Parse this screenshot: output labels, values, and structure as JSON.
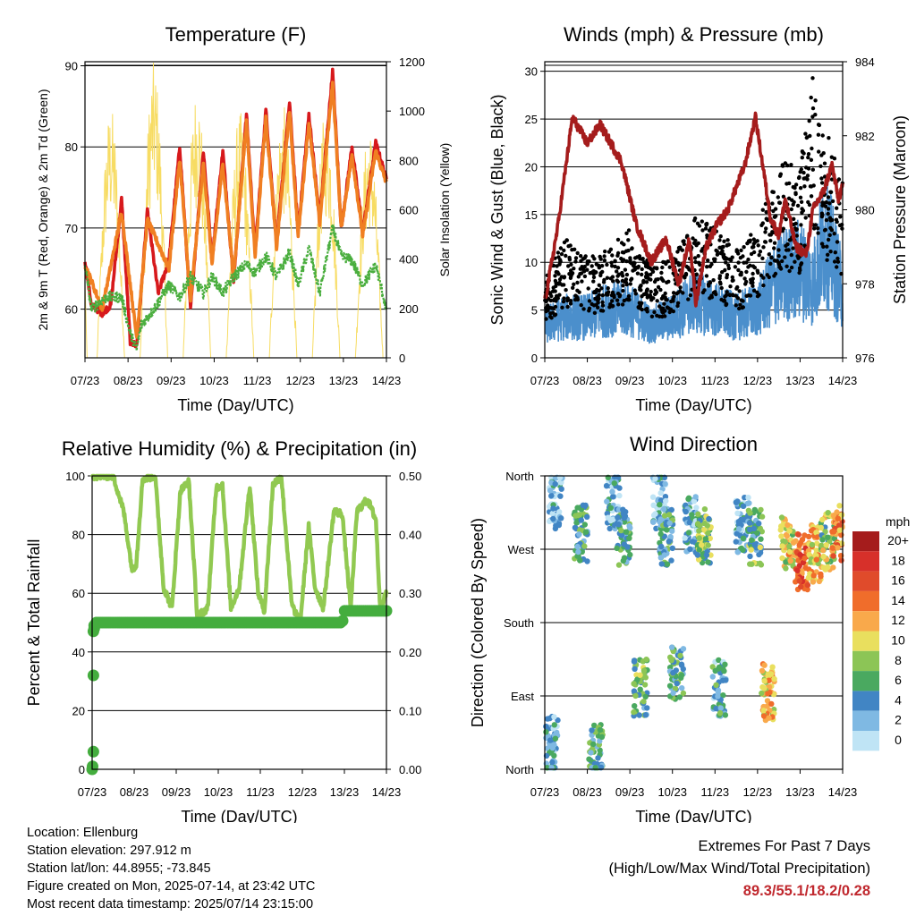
{
  "colors": {
    "temp_2m": "#d7191c",
    "temp_9m": "#f07f22",
    "dewpoint": "#4aae3e",
    "solar": "#f7dc63",
    "gust": "#000000",
    "sonic_wind": "#4b8fcc",
    "pressure": "#a51c1c",
    "rh": "#91c951",
    "precip": "#44ad3e",
    "extremes_value": "#c0282e",
    "axis": "#000000"
  },
  "time_ticks": [
    "07/23",
    "08/23",
    "09/23",
    "10/23",
    "11/23",
    "12/23",
    "13/23",
    "14/23"
  ],
  "chart_data": [
    {
      "type": "line",
      "title": "Temperature (F)",
      "xlabel": "Time (Day/UTC)",
      "ylabel": "2m & 9m T (Red, Orange) & 2m Td (Green)",
      "y2label": "Solar Insolation (Yellow)",
      "ylim": [
        54,
        90.5
      ],
      "y2lim": [
        0,
        1200
      ],
      "yticks": [
        60,
        70,
        80,
        90
      ],
      "y2ticks": [
        0,
        200,
        400,
        600,
        800,
        1000,
        1200
      ],
      "grid": "horizontal",
      "x_days": [
        0,
        1,
        2,
        3,
        4,
        5,
        6,
        7
      ],
      "series": [
        {
          "name": "2m T",
          "color": "#d7191c",
          "x": [
            0,
            0.15,
            0.4,
            0.6,
            0.85,
            1.05,
            1.2,
            1.3,
            1.45,
            1.7,
            1.95,
            2.2,
            2.45,
            2.75,
            2.95,
            3.2,
            3.45,
            3.75,
            3.95,
            4.2,
            4.45,
            4.75,
            4.95,
            5.2,
            5.45,
            5.75,
            5.95,
            6.2,
            6.45,
            6.75,
            7
          ],
          "values": [
            66,
            60.5,
            59.5,
            60.5,
            73.5,
            56,
            55.5,
            62,
            72,
            62,
            66,
            80,
            60,
            79.5,
            66,
            79.5,
            63.5,
            84,
            67,
            84.5,
            68,
            85.5,
            69.5,
            84,
            71,
            89.3,
            70,
            80,
            69.5,
            80.5,
            76
          ]
        },
        {
          "name": "9m T",
          "color": "#f07f22",
          "x": [
            0,
            0.4,
            0.85,
            1.2,
            1.45,
            1.95,
            2.2,
            2.45,
            2.75,
            2.95,
            3.2,
            3.45,
            3.75,
            3.95,
            4.2,
            4.45,
            4.75,
            4.95,
            5.2,
            5.45,
            5.75,
            5.95,
            6.2,
            6.45,
            6.75,
            7
          ],
          "values": [
            65.5,
            60,
            72,
            56.5,
            71,
            65,
            78.5,
            61,
            78,
            65.5,
            78,
            64,
            83,
            66.5,
            83.5,
            67.5,
            84.5,
            69,
            83,
            70.5,
            88,
            70,
            79,
            69,
            79.5,
            75.5
          ]
        },
        {
          "name": "2m Td",
          "color": "#4aae3e",
          "x": [
            0,
            0.15,
            0.5,
            0.85,
            1.05,
            1.2,
            1.3,
            1.6,
            1.95,
            2.2,
            2.45,
            2.75,
            2.95,
            3.2,
            3.45,
            3.75,
            3.95,
            4.2,
            4.45,
            4.75,
            4.95,
            5.2,
            5.45,
            5.75,
            5.95,
            6.2,
            6.45,
            6.75,
            7
          ],
          "values": [
            65.5,
            60,
            61.5,
            61.5,
            57,
            55,
            58,
            60,
            63,
            61.5,
            64,
            62,
            64,
            62,
            64,
            65.5,
            64.5,
            66.5,
            64,
            67,
            63,
            67.5,
            62,
            70,
            66.5,
            66,
            63,
            65.5,
            60
          ]
        }
      ],
      "solar": {
        "name": "Solar Insolation",
        "color": "#f7dc63",
        "peak_days": [
          0.6,
          1.6,
          2.6,
          3.6,
          4.6,
          5.6,
          6.6
        ],
        "peaks": [
          1020,
          1200,
          1100,
          1000,
          1030,
          1020,
          940
        ],
        "start_value": 300
      }
    },
    {
      "type": "scatter",
      "title": "Winds (mph) & Pressure (mb)",
      "xlabel": "Time (Day/UTC)",
      "ylabel": "Sonic Wind & Gust (Blue, Black)",
      "y2label": "Station Pressure (Maroon)",
      "ylim": [
        0,
        31
      ],
      "y2lim": [
        976,
        984
      ],
      "yticks": [
        0,
        5,
        10,
        15,
        20,
        25,
        30
      ],
      "y2ticks": [
        976,
        978,
        980,
        982,
        984
      ],
      "grid": "horizontal",
      "series": [
        {
          "name": "Station Pressure",
          "color": "#a51c1c",
          "x": [
            0,
            0.3,
            0.65,
            0.8,
            1.0,
            1.3,
            1.55,
            1.8,
            2.15,
            2.5,
            2.85,
            3.15,
            3.4,
            3.55,
            3.8,
            4.05,
            4.3,
            4.5,
            4.7,
            4.95,
            5.15,
            5.3,
            5.5,
            5.65,
            5.9,
            6.15,
            6.3,
            6.55,
            6.75,
            6.9,
            7
          ],
          "values": [
            977.5,
            979.5,
            982.5,
            982.2,
            981.8,
            982.3,
            981.8,
            981.3,
            979.6,
            978.6,
            979.2,
            978,
            979.2,
            977.5,
            979,
            979.6,
            980,
            980.6,
            981.2,
            982.5,
            981,
            979.8,
            979.3,
            980.3,
            979,
            978.8,
            980,
            980.5,
            981.2,
            980.3,
            980.6
          ]
        },
        {
          "name": "Gust",
          "color": "#000000",
          "x": [
            0,
            0.5,
            1.0,
            1.5,
            2.0,
            2.5,
            3.0,
            3.5,
            4.0,
            4.5,
            5.0,
            5.5,
            6.0,
            6.3,
            6.6,
            7
          ],
          "values": [
            8,
            12,
            10,
            11,
            13,
            9,
            10,
            14,
            13,
            11,
            13,
            20,
            19,
            29,
            23,
            18
          ]
        },
        {
          "name": "Sonic Wind",
          "color": "#4b8fcc",
          "x": [
            0,
            0.5,
            1.0,
            1.5,
            2.0,
            2.5,
            3.0,
            3.5,
            4.0,
            4.5,
            5.0,
            5.5,
            6.0,
            6.3,
            6.6,
            7
          ],
          "values": [
            4,
            5,
            5,
            6,
            6,
            4,
            5,
            7,
            6,
            5,
            6,
            10,
            11,
            9,
            15,
            8
          ]
        }
      ]
    },
    {
      "type": "line",
      "title": "Relative Humidity (%) & Precipitation (in)",
      "xlabel": "Time (Day/UTC)",
      "ylabel": "Percent & Total Rainfall",
      "ylim": [
        0,
        100
      ],
      "y2lim": [
        0,
        0.5
      ],
      "yticks": [
        0,
        20,
        40,
        60,
        80,
        100
      ],
      "y2ticks": [
        "0.00",
        "0.10",
        "0.20",
        "0.30",
        "0.40",
        "0.50"
      ],
      "grid": "horizontal",
      "series": [
        {
          "name": "Relative Humidity",
          "color": "#91c951",
          "x": [
            0,
            0.5,
            0.75,
            0.95,
            1.05,
            1.2,
            1.5,
            1.7,
            1.9,
            2.1,
            2.3,
            2.5,
            2.75,
            2.95,
            3.1,
            3.3,
            3.5,
            3.75,
            3.95,
            4.1,
            4.3,
            4.5,
            4.75,
            4.95,
            5.15,
            5.3,
            5.5,
            5.75,
            5.95,
            6.15,
            6.3,
            6.55,
            6.75,
            6.85,
            7
          ],
          "values": [
            100,
            100,
            88,
            68,
            70,
            99,
            100,
            62,
            55,
            95,
            98,
            52,
            55,
            96,
            97,
            55,
            62,
            97,
            60,
            54,
            97,
            100,
            56,
            50,
            83,
            62,
            55,
            88,
            87,
            55,
            88,
            92,
            85,
            55,
            60
          ]
        },
        {
          "name": "Total Precipitation",
          "color": "#44ad3e",
          "x": [
            0,
            0.02,
            0.04,
            0.05,
            0.06,
            0.08,
            0.1,
            0.2,
            5.95,
            6.0,
            6.5,
            7.0
          ],
          "values": [
            0,
            0.03,
            0.16,
            0.24,
            0.245,
            0.25,
            0.25,
            0.25,
            0.25,
            0.27,
            0.27,
            0.27
          ]
        }
      ]
    },
    {
      "type": "scatter",
      "title": "Wind Direction",
      "xlabel": "Time (Day/UTC)",
      "ylabel": "Direction (Colored By Speed)",
      "ycategories": [
        "North",
        "East",
        "South",
        "West",
        "North"
      ],
      "grid": "horizontal",
      "legend": {
        "title": "mph",
        "position": "right",
        "labels": [
          "20+",
          "18",
          "16",
          "14",
          "12",
          "10",
          "8",
          "6",
          "4",
          "2",
          "0"
        ],
        "colors": [
          "#a51c1c",
          "#d7302a",
          "#e04b2b",
          "#f06d2b",
          "#f9a94b",
          "#e9df5e",
          "#8cc556",
          "#4aa960",
          "#4185c4",
          "#7fb9e3",
          "#bfe4f5"
        ]
      },
      "clusters": [
        {
          "x": 0.25,
          "dir": 330,
          "speed": 2
        },
        {
          "x": 0.15,
          "dir": 30,
          "speed": 3
        },
        {
          "x": 0.85,
          "dir": 290,
          "speed": 5
        },
        {
          "x": 1.2,
          "dir": 20,
          "speed": 5
        },
        {
          "x": 1.6,
          "dir": 330,
          "speed": 3
        },
        {
          "x": 1.85,
          "dir": 285,
          "speed": 5
        },
        {
          "x": 2.25,
          "dir": 100,
          "speed": 6
        },
        {
          "x": 2.7,
          "dir": 330,
          "speed": 3
        },
        {
          "x": 2.85,
          "dir": 285,
          "speed": 5
        },
        {
          "x": 3.1,
          "dir": 120,
          "speed": 5
        },
        {
          "x": 3.45,
          "dir": 300,
          "speed": 3
        },
        {
          "x": 3.75,
          "dir": 285,
          "speed": 7
        },
        {
          "x": 4.1,
          "dir": 100,
          "speed": 4
        },
        {
          "x": 4.65,
          "dir": 300,
          "speed": 3
        },
        {
          "x": 4.95,
          "dir": 285,
          "speed": 6
        },
        {
          "x": 5.25,
          "dir": 95,
          "speed": 11
        },
        {
          "x": 5.7,
          "dir": 275,
          "speed": 10
        },
        {
          "x": 6.05,
          "dir": 255,
          "speed": 15
        },
        {
          "x": 6.35,
          "dir": 265,
          "speed": 11
        },
        {
          "x": 6.65,
          "dir": 280,
          "speed": 8
        },
        {
          "x": 6.9,
          "dir": 290,
          "speed": 13
        }
      ]
    }
  ],
  "info": {
    "location": "Location: Ellenburg",
    "elevation": "Station elevation: 297.912 m",
    "latlon": "Station lat/lon: 44.8955; -73.845",
    "created": "Figure created on Mon, 2025-07-14, at 23:42 UTC",
    "timestamp": "Most recent data timestamp: 2025/07/14 23:15:00"
  },
  "extremes": {
    "title": "Extremes For Past 7 Days",
    "subtitle": "(High/Low/Max Wind/Total Precipitation)",
    "values": "89.3/55.1/18.2/0.28"
  }
}
